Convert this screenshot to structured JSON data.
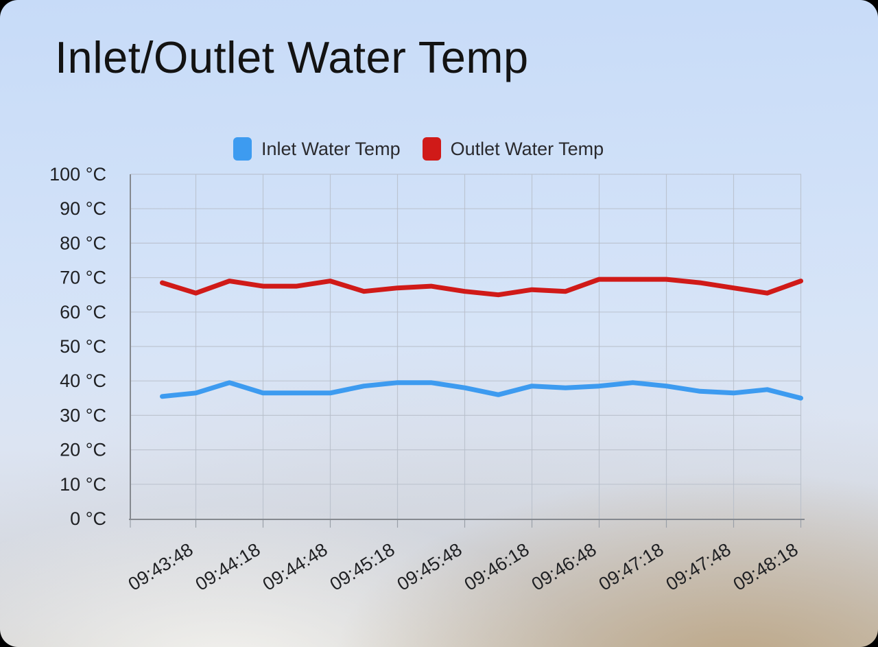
{
  "title": "Inlet/Outlet Water Temp",
  "legend": [
    {
      "label": "Inlet Water Temp",
      "color": "#3d9bf0"
    },
    {
      "label": "Outlet Water Temp",
      "color": "#d01a18"
    }
  ],
  "chart_data": {
    "type": "line",
    "title": "Inlet/Outlet Water Temp",
    "x_tick_labels": [
      "09:43:48",
      "09:44:18",
      "09:44:48",
      "09:45:18",
      "09:45:48",
      "09:46:18",
      "09:46:48",
      "09:47:18",
      "09:47:48",
      "09:48:18"
    ],
    "x_sample_interval_seconds": 15,
    "labels_every_nth_point": 2,
    "first_labeled_point_index": 1,
    "y_ticks": [
      100,
      90,
      80,
      70,
      60,
      50,
      40,
      30,
      20,
      10,
      0
    ],
    "y_unit": "°C",
    "ylim": [
      0,
      100
    ],
    "grid": true,
    "legend_position": "top",
    "series": [
      {
        "name": "Inlet Water Temp",
        "color": "#3d9bf0",
        "values": [
          35.5,
          36.5,
          39.5,
          36.5,
          36.5,
          36.5,
          38.5,
          39.5,
          39.5,
          38,
          36,
          38.5,
          38,
          38.5,
          39.5,
          38.5,
          37,
          36.5,
          37.5,
          35
        ]
      },
      {
        "name": "Outlet Water Temp",
        "color": "#d01a18",
        "values": [
          68.5,
          65.5,
          69,
          67.5,
          67.5,
          69,
          66,
          67,
          67.5,
          66,
          65,
          66.5,
          66,
          69.5,
          69.5,
          69.5,
          68.5,
          67,
          65.5,
          69
        ]
      }
    ]
  },
  "colors": {
    "axis": "#85898f",
    "grid": "#b7bec9",
    "tick": "#9aa0a8",
    "label_text": "#1f2023",
    "title_text": "#131313"
  }
}
